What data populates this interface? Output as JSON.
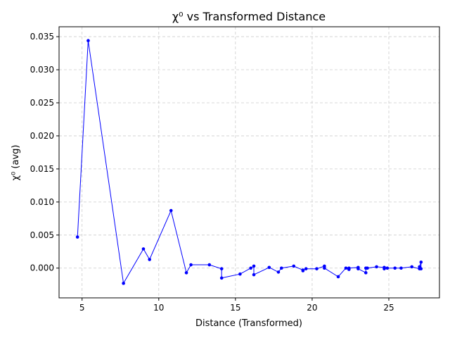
{
  "chart_data": {
    "type": "line",
    "title": "χ⁰ vs Transformed Distance",
    "xlabel": "Distance (Transformed)",
    "ylabel": "χ⁰ (avg)",
    "xlim": [
      3.5,
      28.3
    ],
    "ylim": [
      -0.0045,
      0.0365
    ],
    "x_ticks": [
      5,
      10,
      15,
      20,
      25
    ],
    "x_tick_labels": [
      "5",
      "10",
      "15",
      "20",
      "25"
    ],
    "y_ticks": [
      0.0,
      0.005,
      0.01,
      0.015,
      0.02,
      0.025,
      0.03,
      0.035
    ],
    "y_tick_labels": [
      "0.000",
      "0.005",
      "0.010",
      "0.015",
      "0.020",
      "0.025",
      "0.030",
      "0.035"
    ],
    "grid": true,
    "grid_style": "dashed",
    "legend": "none",
    "colors": {
      "series": "#0000ff",
      "grid": "#cccccc",
      "axes": "#000000"
    },
    "series": [
      {
        "color": "#0000ff",
        "marker": "circle",
        "x": [
          4.7,
          5.4,
          7.7,
          9.0,
          9.4,
          10.8,
          11.8,
          12.1,
          13.3,
          14.1,
          14.1,
          15.3,
          16.0,
          16.2,
          16.2,
          17.2,
          17.8,
          18.0,
          18.8,
          19.4,
          19.4,
          19.6,
          20.3,
          20.8,
          20.8,
          21.7,
          22.2,
          22.4,
          22.4,
          23.0,
          23.0,
          23.5,
          23.5,
          23.6,
          24.2,
          24.7,
          24.7,
          24.9,
          25.4,
          25.8,
          26.5,
          27.0,
          27.0,
          27.1,
          27.1
        ],
        "y": [
          0.0047,
          0.0344,
          -0.0023,
          0.0029,
          0.0013,
          0.0087,
          -0.0007,
          0.0005,
          0.0005,
          -0.0001,
          -0.0015,
          -0.0009,
          0.0,
          0.0003,
          -0.001,
          0.0001,
          -0.0006,
          0.0,
          0.0003,
          -0.0003,
          -0.0004,
          -0.0001,
          -0.0001,
          0.0003,
          0.0,
          -0.0013,
          0.0,
          -0.0002,
          0.0,
          0.0001,
          -0.0001,
          -0.0007,
          0.0,
          0.0,
          0.0002,
          0.0001,
          -0.0001,
          0.0,
          0.0,
          0.0,
          0.0002,
          -0.0001,
          0.0002,
          0.0009,
          -0.0001
        ]
      }
    ]
  }
}
